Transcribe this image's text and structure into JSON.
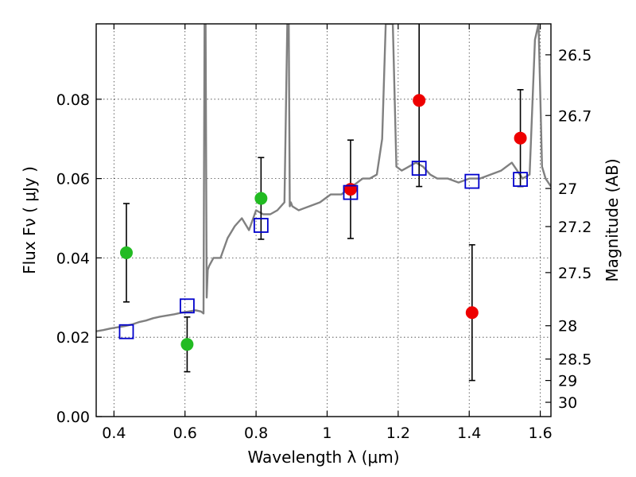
{
  "chart_data": {
    "type": "scatter",
    "xlabel": "Wavelength  λ (μm)",
    "ylabel": "Flux  Fν  ( μJy )",
    "ylabel_right": "Magnitude (AB)",
    "xlim": [
      0.35,
      1.63
    ],
    "ylim": [
      0.0,
      0.099
    ],
    "x_ticks": [
      0.4,
      0.6,
      0.8,
      1.0,
      1.2,
      1.4,
      1.6
    ],
    "x_tick_labels": [
      "0.4",
      "0.6",
      "0.8",
      "1",
      "1.2",
      "1.4",
      "1.6"
    ],
    "y_ticks": [
      0.0,
      0.02,
      0.04,
      0.06,
      0.08
    ],
    "y_tick_labels": [
      "0.00",
      "0.02",
      "0.04",
      "0.06",
      "0.08"
    ],
    "right_ticks": [
      {
        "label": "26.5",
        "flux": 0.0912
      },
      {
        "label": "26.7",
        "flux": 0.0759
      },
      {
        "label": "27",
        "flux": 0.0575
      },
      {
        "label": "27.2",
        "flux": 0.0479
      },
      {
        "label": "27.5",
        "flux": 0.0363
      },
      {
        "label": "28",
        "flux": 0.0229
      },
      {
        "label": "28.5",
        "flux": 0.0145
      },
      {
        "label": "29",
        "flux": 0.0091
      },
      {
        "label": "30",
        "flux": 0.0036
      }
    ],
    "grid": true,
    "series": [
      {
        "kind": "observed",
        "color": "#22bb22",
        "points": [
          {
            "x": 0.435,
            "y": 0.0413,
            "err": 0.0124
          },
          {
            "x": 0.606,
            "y": 0.0182,
            "err": 0.0069
          },
          {
            "x": 0.814,
            "y": 0.055,
            "err": 0.0103
          }
        ]
      },
      {
        "kind": "observed",
        "color": "#ee0000",
        "points": [
          {
            "x": 1.066,
            "y": 0.0573,
            "err": 0.0124
          },
          {
            "x": 1.259,
            "y": 0.0797,
            "err": 0.0217
          },
          {
            "x": 1.408,
            "y": 0.0262,
            "err": 0.0171
          },
          {
            "x": 1.544,
            "y": 0.0702,
            "err": 0.0122
          }
        ]
      },
      {
        "kind": "model",
        "color": "#0000cc",
        "points": [
          {
            "x": 0.435,
            "y": 0.0214
          },
          {
            "x": 0.606,
            "y": 0.0279
          },
          {
            "x": 0.814,
            "y": 0.0482
          },
          {
            "x": 1.066,
            "y": 0.0565
          },
          {
            "x": 1.259,
            "y": 0.0626
          },
          {
            "x": 1.408,
            "y": 0.0593
          },
          {
            "x": 1.544,
            "y": 0.0598
          }
        ]
      }
    ],
    "spectrum": {
      "color": "#808080",
      "x": [
        0.35,
        0.37,
        0.39,
        0.41,
        0.43,
        0.45,
        0.47,
        0.49,
        0.51,
        0.53,
        0.55,
        0.57,
        0.59,
        0.61,
        0.63,
        0.645,
        0.652,
        0.655,
        0.658,
        0.661,
        0.664,
        0.668,
        0.68,
        0.7,
        0.72,
        0.74,
        0.76,
        0.78,
        0.8,
        0.82,
        0.84,
        0.86,
        0.88,
        0.888,
        0.892,
        0.895,
        0.898,
        0.902,
        0.92,
        0.95,
        0.98,
        1.01,
        1.04,
        1.07,
        1.1,
        1.12,
        1.14,
        1.155,
        1.165,
        1.175,
        1.185,
        1.195,
        1.21,
        1.23,
        1.25,
        1.27,
        1.29,
        1.31,
        1.34,
        1.37,
        1.4,
        1.43,
        1.46,
        1.49,
        1.52,
        1.55,
        1.57,
        1.585,
        1.595,
        1.605,
        1.615,
        1.63
      ],
      "y": [
        0.0215,
        0.0218,
        0.0222,
        0.0225,
        0.0228,
        0.0232,
        0.0238,
        0.0242,
        0.0248,
        0.0252,
        0.0255,
        0.0258,
        0.0262,
        0.0265,
        0.0268,
        0.0265,
        0.026,
        0.099,
        0.099,
        0.03,
        0.037,
        0.038,
        0.04,
        0.04,
        0.045,
        0.048,
        0.05,
        0.047,
        0.052,
        0.051,
        0.051,
        0.052,
        0.054,
        0.099,
        0.099,
        0.053,
        0.054,
        0.053,
        0.052,
        0.053,
        0.054,
        0.056,
        0.056,
        0.058,
        0.06,
        0.06,
        0.061,
        0.07,
        0.099,
        0.099,
        0.099,
        0.063,
        0.062,
        0.063,
        0.064,
        0.063,
        0.061,
        0.06,
        0.06,
        0.059,
        0.06,
        0.06,
        0.061,
        0.062,
        0.064,
        0.06,
        0.061,
        0.095,
        0.099,
        0.063,
        0.06,
        0.058
      ]
    }
  }
}
